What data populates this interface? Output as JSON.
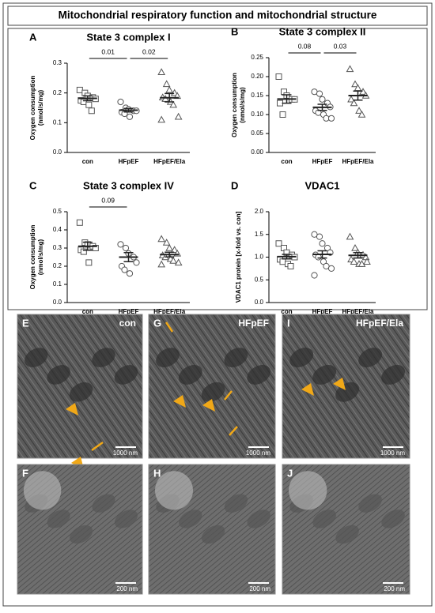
{
  "title": "Mitochondrial respiratory function and mitochondrial structure",
  "chart_data": [
    {
      "type": "dot",
      "label": "A",
      "title": "State 3 complex I",
      "ylabel": [
        "Oxygen consumption",
        "(nmol/s/mg)"
      ],
      "categories": [
        "con",
        "HFpEF",
        "HFpEF/Ela"
      ],
      "ylim": [
        0,
        0.3
      ],
      "yticks": [
        {
          "value": 0,
          "label": "0.0"
        },
        0.1,
        0.2,
        0.3
      ],
      "color": "#222222",
      "groups": [
        {
          "marker": "square",
          "values": [
            0.21,
            0.2,
            0.19,
            0.185,
            0.18,
            0.175,
            0.17,
            0.16,
            0.14
          ],
          "mean": 0.182,
          "sem": 0.008
        },
        {
          "marker": "circle",
          "values": [
            0.17,
            0.15,
            0.145,
            0.14,
            0.14,
            0.135,
            0.13,
            0.12
          ],
          "mean": 0.142,
          "sem": 0.006
        },
        {
          "marker": "triangle",
          "values": [
            0.27,
            0.23,
            0.21,
            0.2,
            0.19,
            0.185,
            0.18,
            0.17,
            0.16,
            0.12,
            0.11
          ],
          "mean": 0.184,
          "sem": 0.014
        }
      ],
      "comparisons": [
        {
          "from": 0,
          "to": 1,
          "label": "0.01"
        },
        {
          "from": 1,
          "to": 2,
          "label": "0.02"
        }
      ]
    },
    {
      "type": "dot",
      "label": "B",
      "title": "State 3 complex II",
      "ylabel": [
        "Oxygen consumption",
        "(nmol/s/mg)"
      ],
      "categories": [
        "con",
        "HFpEF",
        "HFpEF/Ela"
      ],
      "ylim": [
        0,
        0.25
      ],
      "yticks": [
        {
          "value": 0,
          "label": "0.00"
        },
        0.05,
        {
          "value": 0.1,
          "label": "0.10"
        },
        0.15,
        {
          "value": 0.2,
          "label": "0.20"
        },
        0.25
      ],
      "color": "#222222",
      "groups": [
        {
          "marker": "square",
          "values": [
            0.2,
            0.16,
            0.15,
            0.14,
            0.14,
            0.13,
            0.1
          ],
          "mean": 0.141,
          "sem": 0.011
        },
        {
          "marker": "circle",
          "values": [
            0.16,
            0.155,
            0.14,
            0.13,
            0.12,
            0.11,
            0.105,
            0.1,
            0.09,
            0.09
          ],
          "mean": 0.119,
          "sem": 0.008
        },
        {
          "marker": "triangle",
          "values": [
            0.22,
            0.18,
            0.17,
            0.16,
            0.15,
            0.14,
            0.13,
            0.11,
            0.1
          ],
          "mean": 0.15,
          "sem": 0.012
        }
      ],
      "comparisons": [
        {
          "from": 0,
          "to": 1,
          "label": "0.08"
        },
        {
          "from": 1,
          "to": 2,
          "label": "0.03"
        }
      ]
    },
    {
      "type": "dot",
      "label": "C",
      "title": "State 3 complex IV",
      "ylabel": [
        "Oxygen consumption",
        "(nmol/s/mg)"
      ],
      "categories": [
        "con",
        "HFpEF",
        "HFpEF/Ela"
      ],
      "ylim": [
        0,
        0.5
      ],
      "yticks": [
        {
          "value": 0,
          "label": "0.0"
        },
        0.1,
        0.2,
        0.3,
        0.4,
        0.5
      ],
      "color": "#222222",
      "groups": [
        {
          "marker": "square",
          "values": [
            0.44,
            0.33,
            0.32,
            0.31,
            0.3,
            0.29,
            0.28,
            0.22
          ],
          "mean": 0.31,
          "sem": 0.022
        },
        {
          "marker": "circle",
          "values": [
            0.32,
            0.3,
            0.27,
            0.25,
            0.22,
            0.2,
            0.18,
            0.16
          ],
          "mean": 0.25,
          "sem": 0.025
        },
        {
          "marker": "triangle",
          "values": [
            0.35,
            0.33,
            0.3,
            0.29,
            0.27,
            0.26,
            0.25,
            0.24,
            0.23,
            0.22,
            0.21
          ],
          "mean": 0.264,
          "sem": 0.013
        }
      ],
      "comparisons": [
        {
          "from": 0,
          "to": 1,
          "label": "0.09"
        }
      ]
    },
    {
      "type": "dot",
      "label": "D",
      "title": "VDAC1",
      "ylabel": [
        "VDAC1 protein [x-fold vs. con]"
      ],
      "categories": [
        "con",
        "HFpEF",
        "HFpEF/Ela"
      ],
      "ylim": [
        0,
        2
      ],
      "yticks": [
        {
          "value": 0,
          "label": "0.0"
        },
        0.5,
        {
          "value": 1,
          "label": "1.0"
        },
        1.5,
        {
          "value": 2,
          "label": "2.0"
        }
      ],
      "color": "#222222",
      "groups": [
        {
          "marker": "square",
          "values": [
            1.3,
            1.2,
            1.1,
            1.05,
            1.0,
            0.95,
            0.9,
            0.85,
            0.8
          ],
          "mean": 1.01,
          "sem": 0.05
        },
        {
          "marker": "circle",
          "values": [
            1.5,
            1.45,
            1.3,
            1.2,
            1.1,
            1.05,
            1.0,
            0.9,
            0.8,
            0.75,
            0.6
          ],
          "mean": 1.06,
          "sem": 0.08
        },
        {
          "marker": "triangle",
          "values": [
            1.45,
            1.2,
            1.1,
            1.05,
            1.0,
            0.95,
            0.9,
            0.85,
            0.85,
            0.9
          ],
          "mean": 1.04,
          "sem": 0.06
        }
      ],
      "comparisons": []
    }
  ],
  "images": [
    {
      "label": "E",
      "caption": "con",
      "scale": "1000 nm"
    },
    {
      "label": "G",
      "caption": "HFpEF",
      "scale": "1000 nm"
    },
    {
      "label": "I",
      "caption": "HFpEF/Ela",
      "scale": "1000 nm"
    },
    {
      "label": "F",
      "scale": "200 nm"
    },
    {
      "label": "H",
      "scale": "200 nm"
    },
    {
      "label": "J",
      "scale": "200 nm"
    }
  ]
}
